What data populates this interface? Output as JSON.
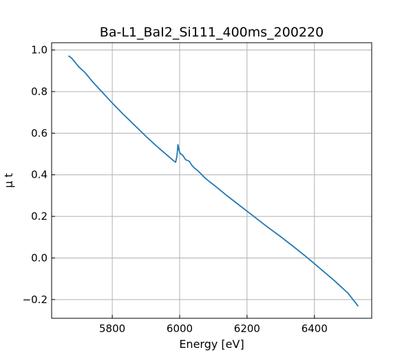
{
  "chart_data": {
    "type": "line",
    "title": "Ba-L1_BaI2_Si111_400ms_200220",
    "xlabel": "Energy [eV]",
    "ylabel": "μ t",
    "xlim": [
      5620,
      6570
    ],
    "ylim": [
      -0.29,
      1.035
    ],
    "xticks": [
      5800,
      6000,
      6200,
      6400
    ],
    "xtick_labels": [
      "5800",
      "6000",
      "6200",
      "6400"
    ],
    "yticks": [
      -0.2,
      0.0,
      0.2,
      0.4,
      0.6,
      0.8,
      1.0
    ],
    "ytick_labels": [
      "−0.2",
      "0.0",
      "0.2",
      "0.4",
      "0.6",
      "0.8",
      "1.0"
    ],
    "grid": true,
    "tick_direction": "in",
    "series": [
      {
        "color": "#1f77b4",
        "x": [
          5670,
          5680,
          5690,
          5700,
          5710,
          5720,
          5730,
          5740,
          5760,
          5780,
          5800,
          5830,
          5860,
          5900,
          5930,
          5960,
          5980,
          5988,
          5992,
          5995,
          5998,
          6000,
          6003,
          6008,
          6012,
          6018,
          6025,
          6030,
          6035,
          6042,
          6050,
          6060,
          6075,
          6090,
          6110,
          6140,
          6180,
          6220,
          6260,
          6300,
          6340,
          6380,
          6420,
          6460,
          6500,
          6530
        ],
        "y": [
          0.972,
          0.96,
          0.94,
          0.92,
          0.905,
          0.89,
          0.87,
          0.85,
          0.815,
          0.78,
          0.745,
          0.695,
          0.648,
          0.585,
          0.54,
          0.498,
          0.47,
          0.46,
          0.49,
          0.545,
          0.52,
          0.508,
          0.5,
          0.496,
          0.487,
          0.472,
          0.468,
          0.462,
          0.448,
          0.435,
          0.425,
          0.41,
          0.385,
          0.365,
          0.34,
          0.3,
          0.25,
          0.2,
          0.15,
          0.102,
          0.052,
          0.0,
          -0.055,
          -0.11,
          -0.17,
          -0.232
        ]
      }
    ]
  }
}
